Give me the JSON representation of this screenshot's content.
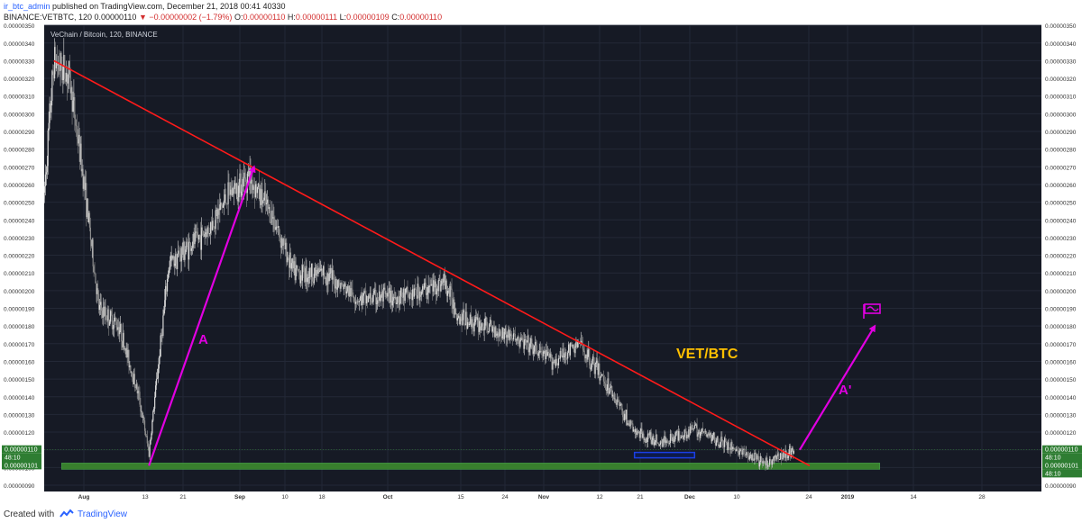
{
  "header": {
    "user": "ir_btc_admin",
    "published": "published on TradingView.com, December 21, 2018 00:41 40330",
    "symbol_line_a": "BINANCE:VETBTC, 120 0.00000110",
    "change": "▼ −0.00000002 (−1.79%)",
    "ohlc_o_label": "O:",
    "ohlc_o": "0.00000110",
    "ohlc_h_label": "H:",
    "ohlc_h": "0.00000111",
    "ohlc_l_label": "L:",
    "ohlc_l": "0.00000109",
    "ohlc_c_label": "C:",
    "ohlc_c": "0.00000110"
  },
  "legend": {
    "title": "VeChain / Bitcoin, 120, BINANCE"
  },
  "annotations": {
    "pair": "VET/BTC",
    "wave_a": "A",
    "wave_a_prime": "A'"
  },
  "price_tags": {
    "last_price": "0.00000110",
    "countdown": "48:10",
    "support": "0.00000101",
    "support_countdown": "48:10"
  },
  "footer": {
    "created_with": "Created with",
    "brand": "TradingView"
  },
  "colors": {
    "background": "#161a25",
    "candle_up": "#d9d9d9",
    "candle_down": "#8c8c8c",
    "trendline": "#ff1a1a",
    "arrow": "#e100e1",
    "pair_label": "#ffc000",
    "support_zone": "#3c8a2e",
    "small_zone": "#1a3fe6",
    "price_tag": "#2e7d32"
  },
  "chart_data": {
    "type": "candlestick",
    "y_axis_ticks": [
      "0.00000350",
      "0.00000340",
      "0.00000330",
      "0.00000320",
      "0.00000310",
      "0.00000300",
      "0.00000290",
      "0.00000280",
      "0.00000270",
      "0.00000260",
      "0.00000250",
      "0.00000240",
      "0.00000230",
      "0.00000220",
      "0.00000210",
      "0.00000200",
      "0.00000190",
      "0.00000180",
      "0.00000170",
      "0.00000160",
      "0.00000150",
      "0.00000140",
      "0.00000130",
      "0.00000120",
      "0.00000110",
      "0.00000100",
      "0.00000090"
    ],
    "ylim": [
      9e-07,
      3.5e-06
    ],
    "x_axis_ticks": [
      "Aug",
      "13",
      "21",
      "Sep",
      "10",
      "18",
      "Oct",
      "15",
      "24",
      "Nov",
      "12",
      "21",
      "Dec",
      "10",
      "24",
      "2019",
      "14",
      "28"
    ],
    "price_path": [
      {
        "date": "Jul 24",
        "price": 2.52e-06
      },
      {
        "date": "Jul 26",
        "price": 3.3e-06
      },
      {
        "date": "Jul 29",
        "price": 3.22e-06
      },
      {
        "date": "Aug 1",
        "price": 2.62e-06
      },
      {
        "date": "Aug 4",
        "price": 1.9e-06
      },
      {
        "date": "Aug 8",
        "price": 1.8e-06
      },
      {
        "date": "Aug 12",
        "price": 1.4e-06
      },
      {
        "date": "Aug 14",
        "price": 1.08e-06
      },
      {
        "date": "Aug 18",
        "price": 2.15e-06
      },
      {
        "date": "Aug 26",
        "price": 2.35e-06
      },
      {
        "date": "Aug 30",
        "price": 2.55e-06
      },
      {
        "date": "Sep 3",
        "price": 2.65e-06
      },
      {
        "date": "Sep 8",
        "price": 2.4e-06
      },
      {
        "date": "Sep 12",
        "price": 2.1e-06
      },
      {
        "date": "Sep 18",
        "price": 2.1e-06
      },
      {
        "date": "Sep 25",
        "price": 1.95e-06
      },
      {
        "date": "Oct 5",
        "price": 1.97e-06
      },
      {
        "date": "Oct 12",
        "price": 2.05e-06
      },
      {
        "date": "Oct 15",
        "price": 1.85e-06
      },
      {
        "date": "Oct 25",
        "price": 1.75e-06
      },
      {
        "date": "Nov 3",
        "price": 1.6e-06
      },
      {
        "date": "Nov 8",
        "price": 1.7e-06
      },
      {
        "date": "Nov 14",
        "price": 1.45e-06
      },
      {
        "date": "Nov 19",
        "price": 1.2e-06
      },
      {
        "date": "Nov 24",
        "price": 1.14e-06
      },
      {
        "date": "Dec 1",
        "price": 1.22e-06
      },
      {
        "date": "Dec 8",
        "price": 1.12e-06
      },
      {
        "date": "Dec 15",
        "price": 1.02e-06
      },
      {
        "date": "Dec 19",
        "price": 1.08e-06
      },
      {
        "date": "Dec 21",
        "price": 1.1e-06
      }
    ],
    "trendline": [
      {
        "date": "Jul 26",
        "price": 3.3e-06
      },
      {
        "date": "Dec 24",
        "price": 1.01e-06
      }
    ],
    "support_level": 1.01e-06,
    "last_price": 1.1e-06,
    "wave_a_arrow": [
      {
        "date": "Aug 14",
        "price": 1.01e-06
      },
      {
        "date": "Sep 4",
        "price": 2.7e-06
      }
    ],
    "wave_a_prime_arrow": [
      {
        "date": "Dec 22",
        "price": 1.1e-06
      },
      {
        "date": "Jan 6",
        "price": 1.8e-06
      }
    ],
    "blue_zone": {
      "from": "Nov 19",
      "to": "Dec 1",
      "price": 1.07e-06
    },
    "support_zone": {
      "from": "Jul 29",
      "to": "Jan 7",
      "price": 1.01e-06
    }
  }
}
